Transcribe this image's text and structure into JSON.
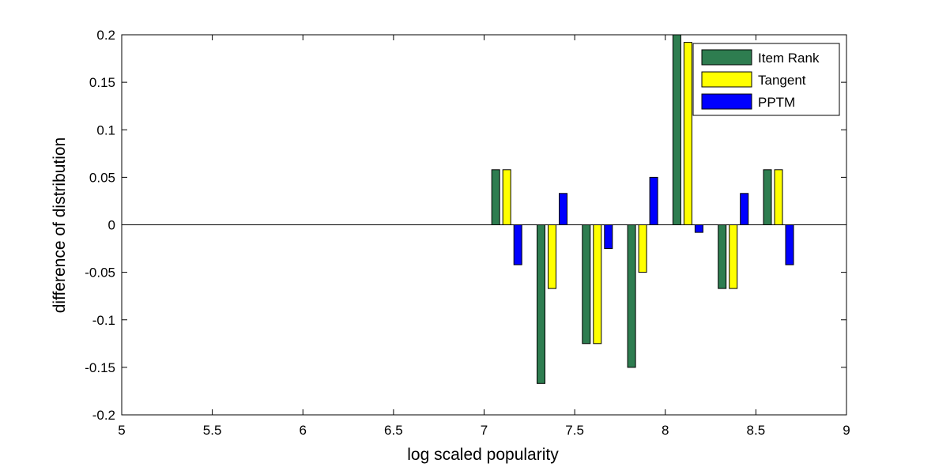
{
  "chart_data": {
    "type": "bar",
    "xlabel": "log scaled popularity",
    "ylabel": "difference of distribution",
    "xlim": [
      5,
      9
    ],
    "ylim": [
      -0.2,
      0.2
    ],
    "x_ticks": [
      "5",
      "5.5",
      "6",
      "6.5",
      "7",
      "7.5",
      "8",
      "8.5",
      "9"
    ],
    "y_ticks": [
      "-0.2",
      "-0.15",
      "-0.1",
      "-0.05",
      "0",
      "0.05",
      "0.1",
      "0.15",
      "0.2"
    ],
    "x": [
      7.125,
      7.375,
      7.625,
      7.875,
      8.125,
      8.375,
      8.625
    ],
    "grid": false,
    "legend_position": "top-right",
    "series": [
      {
        "name": "Item Rank",
        "color": "#2e7d50",
        "values": [
          0.058,
          -0.167,
          -0.125,
          -0.15,
          0.2,
          -0.067,
          0.058
        ]
      },
      {
        "name": "Tangent",
        "color": "#ffff00",
        "values": [
          0.058,
          -0.067,
          -0.125,
          -0.05,
          0.192,
          -0.067,
          0.058
        ]
      },
      {
        "name": "PPTM",
        "color": "#0000ff",
        "values": [
          -0.042,
          0.033,
          -0.025,
          0.05,
          -0.008,
          0.033,
          -0.042
        ]
      }
    ]
  }
}
